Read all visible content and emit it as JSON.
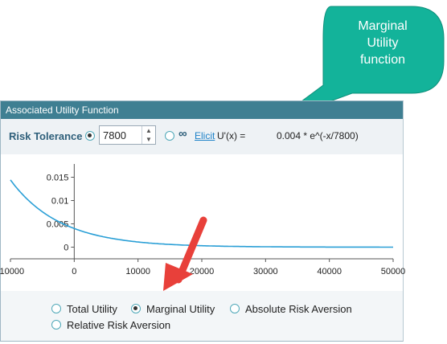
{
  "callout": {
    "line1": "Marginal",
    "line2": "Utility",
    "line3": "function",
    "color": "#13b39a"
  },
  "panel": {
    "title": "Associated Utility Function",
    "header_color": "#3f7f92"
  },
  "toolbar": {
    "risk_label": "Risk Tolerance",
    "risk_value": "7800",
    "infinity_symbol": "∞",
    "elicit_label": "Elicit",
    "formula_lhs": "U'(x) =",
    "formula_rhs": "0.004 * e^(-x/7800)"
  },
  "options": {
    "total": "Total Utility",
    "marginal": "Marginal Utility",
    "absolute": "Absolute Risk Aversion",
    "relative": "Relative Risk Aversion",
    "selected": "marginal"
  },
  "chart_data": {
    "type": "line",
    "xlim": [
      -10000,
      50000
    ],
    "ylim": [
      -0.0025,
      0.0175
    ],
    "x_ticks": [
      "-10000",
      "0",
      "10000",
      "20000",
      "30000",
      "40000",
      "50000"
    ],
    "y_ticks": [
      "0.015",
      "0.01",
      "0.005",
      "0"
    ],
    "risk_tolerance": 7800,
    "coefficient": 0.004,
    "series": [
      {
        "x": [
          -10000,
          -7500,
          -5000,
          -2500,
          0,
          2500,
          5000,
          7500,
          10000,
          15000,
          20000,
          25000,
          30000,
          35000,
          40000,
          45000,
          50000
        ],
        "y": [
          0.0144,
          0.0104,
          0.0076,
          0.0055,
          0.004,
          0.0029,
          0.0021,
          0.0015,
          0.0011,
          0.00058,
          0.00031,
          0.00016,
          9e-05,
          5e-05,
          2e-05,
          1e-05,
          7e-06
        ],
        "color": "#2a9fd6"
      }
    ],
    "grid": false,
    "legend": "none"
  }
}
